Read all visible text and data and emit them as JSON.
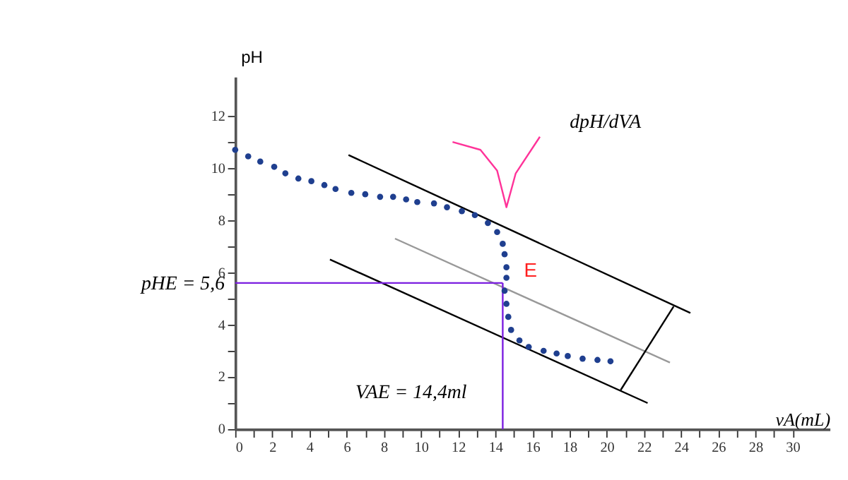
{
  "chart_data": {
    "type": "scatter",
    "xlabel": "vA(mL)",
    "ylabel": "pH",
    "xlim": [
      0,
      32
    ],
    "ylim": [
      0,
      13.5
    ],
    "xticks": [
      0,
      {
        "value": 1,
        "label": null
      },
      2,
      {
        "value": 3,
        "label": null
      },
      4,
      {
        "value": 5,
        "label": null
      },
      6,
      {
        "value": 7,
        "label": null
      },
      8,
      {
        "value": 9,
        "label": null
      },
      10,
      {
        "value": 11,
        "label": null
      },
      12,
      {
        "value": 13,
        "label": null
      },
      14,
      {
        "value": 15,
        "label": null
      },
      16,
      {
        "value": 17,
        "label": null
      },
      18,
      {
        "value": 19,
        "label": null
      },
      20,
      {
        "value": 21,
        "label": null
      },
      22,
      {
        "value": 23,
        "label": null
      },
      24,
      {
        "value": 25,
        "label": null
      },
      26,
      {
        "value": 27,
        "label": null
      },
      28,
      {
        "value": 29,
        "label": null
      },
      30
    ],
    "yticks": [
      0,
      {
        "value": 1,
        "label": null
      },
      2,
      {
        "value": 3,
        "label": null
      },
      4,
      {
        "value": 5,
        "label": null
      },
      6,
      {
        "value": 7,
        "label": null
      },
      8,
      {
        "value": 9,
        "label": null
      },
      10,
      {
        "value": 11,
        "label": null
      },
      12
    ],
    "grid": false,
    "marker": "circle",
    "series": [
      {
        "type": "line",
        "marker": "none",
        "color": "#000000",
        "x": [
          6.1,
          24.5
        ],
        "values": [
          10.5,
          4.45
        ]
      },
      {
        "type": "line",
        "marker": "none",
        "color": "#000000",
        "x": [
          5.1,
          22.2
        ],
        "values": [
          6.5,
          1.0
        ]
      },
      {
        "type": "line",
        "marker": "none",
        "color": "#999999",
        "x": [
          8.6,
          23.4
        ],
        "values": [
          7.3,
          2.55
        ]
      },
      {
        "type": "line",
        "marker": "none",
        "color": "#000000",
        "x": [
          20.75,
          23.6
        ],
        "values": [
          1.5,
          4.7
        ]
      },
      {
        "type": "line",
        "marker": "none",
        "color": "#7b1fe0",
        "x": [
          0,
          14.4
        ],
        "values": [
          5.6,
          5.6
        ]
      },
      {
        "type": "line",
        "marker": "none",
        "color": "#7b1fe0",
        "x": [
          14.4,
          14.4
        ],
        "values": [
          0,
          5.6
        ]
      },
      {
        "type": "line",
        "marker": "none",
        "color": "#ff3399",
        "x": [
          11.7,
          13.2,
          14.1,
          14.6,
          15.1,
          16.4
        ],
        "values": [
          11.0,
          10.7,
          9.9,
          8.5,
          9.8,
          11.2
        ]
      },
      {
        "color": "#1f3f8f",
        "x": [
          0,
          0.7,
          1.35,
          2.1,
          2.7,
          3.4,
          4.1,
          4.8,
          5.4,
          6.25,
          7.0,
          7.8,
          8.5,
          9.2,
          9.8,
          10.7,
          11.4,
          12.2,
          12.9,
          13.6,
          14.1,
          14.4,
          14.5,
          14.6,
          14.6,
          14.5,
          14.6,
          14.7,
          14.85,
          15.3,
          15.8,
          16.6,
          17.3,
          17.9,
          18.7,
          19.5,
          20.2
        ],
        "values": [
          10.7,
          10.45,
          10.25,
          10.05,
          9.8,
          9.6,
          9.5,
          9.35,
          9.2,
          9.05,
          9.0,
          8.9,
          8.9,
          8.8,
          8.7,
          8.65,
          8.5,
          8.35,
          8.2,
          7.9,
          7.55,
          7.1,
          6.7,
          6.2,
          5.8,
          5.3,
          4.8,
          4.3,
          3.8,
          3.4,
          3.15,
          3.0,
          2.9,
          2.8,
          2.7,
          2.65,
          2.6
        ]
      }
    ],
    "annotations": [
      "dpH/dVA",
      "E",
      "VAE = 14,4ml",
      {
        "text": "pHE = 5,6",
        "x": 0,
        "y": 5.6
      }
    ]
  }
}
